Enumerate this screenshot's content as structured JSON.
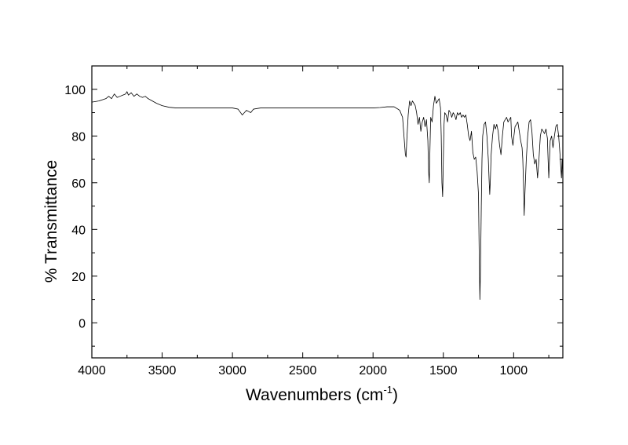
{
  "chart_data": {
    "type": "line",
    "title": "",
    "xlabel": "Wavenumbers (cm",
    "xlabel_superscript": "-1",
    "xlabel_suffix": ")",
    "ylabel": "% Transmittance",
    "xlim": [
      4000,
      650
    ],
    "ylim": [
      -15,
      110
    ],
    "x_reversed": true,
    "grid": false,
    "legend": "none",
    "xticks": [
      4000,
      3500,
      3000,
      2500,
      2000,
      1500,
      1000
    ],
    "xtick_labels": [
      "4000",
      "3500",
      "3000",
      "2500",
      "2000",
      "1500",
      "1000"
    ],
    "yticks": [
      0,
      20,
      40,
      60,
      80,
      100
    ],
    "ytick_labels": [
      "0",
      "20",
      "40",
      "60",
      "80",
      "100"
    ],
    "line_color": "#000000",
    "series": [
      {
        "x": [
          4000,
          3950,
          3900,
          3880,
          3860,
          3840,
          3820,
          3800,
          3780,
          3760,
          3750,
          3740,
          3720,
          3700,
          3680,
          3660,
          3640,
          3620,
          3600,
          3570,
          3540,
          3500,
          3450,
          3400,
          3300,
          3200,
          3100,
          3000,
          2960,
          2930,
          2900,
          2870,
          2850,
          2800,
          2700,
          2600,
          2500,
          2400,
          2300,
          2200,
          2100,
          2000,
          1950,
          1900,
          1850,
          1810,
          1790,
          1780,
          1770,
          1765,
          1760,
          1750,
          1740,
          1730,
          1720,
          1710,
          1700,
          1690,
          1680,
          1670,
          1660,
          1650,
          1640,
          1630,
          1620,
          1610,
          1605,
          1600,
          1595,
          1590,
          1580,
          1570,
          1560,
          1550,
          1540,
          1530,
          1520,
          1515,
          1510,
          1505,
          1500,
          1495,
          1490,
          1480,
          1470,
          1460,
          1450,
          1440,
          1430,
          1420,
          1410,
          1400,
          1390,
          1380,
          1370,
          1360,
          1350,
          1340,
          1330,
          1320,
          1310,
          1300,
          1290,
          1280,
          1270,
          1260,
          1250,
          1245,
          1240,
          1235,
          1230,
          1225,
          1220,
          1210,
          1200,
          1190,
          1180,
          1175,
          1170,
          1165,
          1160,
          1150,
          1140,
          1130,
          1120,
          1110,
          1100,
          1090,
          1080,
          1070,
          1060,
          1050,
          1040,
          1030,
          1020,
          1015,
          1010,
          1005,
          1000,
          990,
          980,
          970,
          960,
          950,
          940,
          935,
          930,
          925,
          920,
          910,
          900,
          890,
          880,
          870,
          860,
          850,
          840,
          830,
          820,
          810,
          800,
          790,
          780,
          770,
          760,
          755,
          750,
          745,
          740,
          730,
          720,
          710,
          700,
          690,
          680,
          670,
          660,
          655,
          650
        ],
        "y": [
          94.5,
          95,
          96,
          97,
          96,
          98,
          96.5,
          97,
          97.5,
          98,
          99,
          97.5,
          98.5,
          97,
          98,
          97,
          96.5,
          97,
          96,
          95,
          94,
          93,
          92.3,
          92,
          92,
          92,
          92,
          92,
          91.5,
          89,
          91,
          90,
          91.5,
          92,
          92,
          92,
          92,
          92,
          92,
          92,
          92,
          92,
          92.2,
          92.5,
          92.5,
          91,
          88,
          80,
          72,
          71,
          78,
          89,
          95,
          93,
          95,
          94,
          93,
          90,
          85,
          88,
          82,
          86,
          88,
          84,
          87,
          78,
          65,
          60,
          75,
          88,
          86,
          93,
          97,
          94,
          95,
          96,
          92,
          80,
          60,
          54,
          70,
          85,
          90,
          89,
          86,
          91,
          90,
          88,
          90,
          89,
          87,
          90,
          89,
          90,
          88,
          89,
          88,
          89,
          85,
          80,
          78,
          82,
          73,
          70,
          71,
          65,
          55,
          30,
          10,
          25,
          50,
          70,
          80,
          85,
          86,
          80,
          70,
          62,
          55,
          62,
          72,
          80,
          85,
          83,
          85,
          82,
          76,
          72,
          80,
          86,
          87,
          88,
          86,
          87,
          88,
          80,
          78,
          76,
          79,
          84,
          85,
          86,
          82,
          78,
          75,
          70,
          60,
          46,
          55,
          70,
          80,
          86,
          87,
          82,
          72,
          68,
          70,
          62,
          70,
          80,
          83,
          82,
          81,
          83,
          79,
          70,
          62,
          70,
          78,
          80,
          75,
          80,
          84,
          85,
          80,
          72,
          62,
          70,
          61
        ]
      }
    ]
  }
}
